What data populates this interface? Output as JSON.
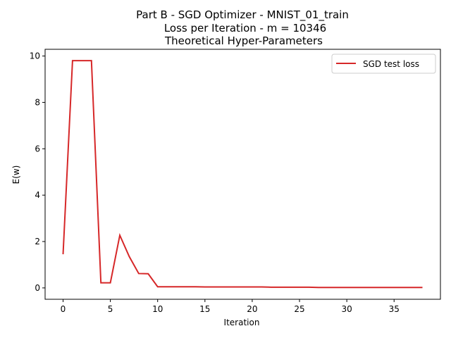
{
  "chart_data": {
    "type": "line",
    "title_lines": [
      "Part B -  SGD Optimizer - MNIST_01_train",
      "Loss per Iteration - m = 10346",
      "Theoretical Hyper-Parameters"
    ],
    "xlabel": "Iteration",
    "ylabel": "E(w)",
    "xlim": [
      -1.9,
      39.9
    ],
    "ylim": [
      -0.49,
      10.29
    ],
    "xticks": [
      0,
      5,
      10,
      15,
      20,
      25,
      30,
      35
    ],
    "yticks": [
      0,
      2,
      4,
      6,
      8,
      10
    ],
    "grid": false,
    "legend_position": "top-right",
    "series": [
      {
        "name": " SGD test loss",
        "color": "#d62728",
        "x": [
          0,
          1,
          2,
          3,
          4,
          5,
          6,
          7,
          8,
          9,
          10,
          11,
          12,
          13,
          14,
          15,
          16,
          17,
          18,
          19,
          20,
          21,
          22,
          23,
          24,
          25,
          26,
          27,
          28,
          29,
          30,
          31,
          32,
          33,
          34,
          35,
          36,
          37,
          38
        ],
        "values": [
          1.45,
          9.8,
          9.8,
          9.8,
          0.22,
          0.22,
          2.27,
          1.35,
          0.62,
          0.61,
          0.05,
          0.05,
          0.05,
          0.05,
          0.05,
          0.04,
          0.04,
          0.04,
          0.04,
          0.04,
          0.04,
          0.04,
          0.03,
          0.03,
          0.03,
          0.03,
          0.03,
          0.02,
          0.02,
          0.02,
          0.02,
          0.02,
          0.02,
          0.02,
          0.02,
          0.02,
          0.02,
          0.02,
          0.02
        ]
      }
    ]
  }
}
